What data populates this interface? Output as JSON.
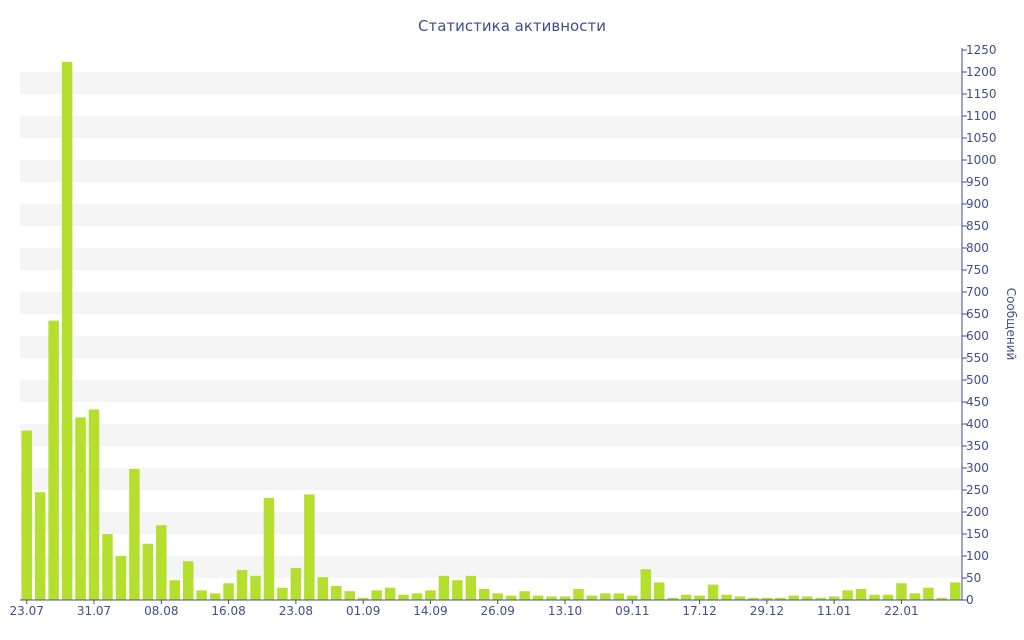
{
  "chart_data": {
    "type": "bar",
    "title": "Статистика активности",
    "ylabel": "Сообщений",
    "xlabel": "",
    "ylim": [
      0,
      1250
    ],
    "y_ticks": [
      0,
      50,
      100,
      150,
      200,
      250,
      300,
      350,
      400,
      450,
      500,
      550,
      600,
      650,
      700,
      750,
      800,
      850,
      900,
      950,
      1000,
      1050,
      1100,
      1150,
      1200,
      1250
    ],
    "x_tick_labels": [
      {
        "index": 0,
        "label": "23.07"
      },
      {
        "index": 5,
        "label": "31.07"
      },
      {
        "index": 10,
        "label": "08.08"
      },
      {
        "index": 15,
        "label": "16.08"
      },
      {
        "index": 20,
        "label": "23.08"
      },
      {
        "index": 25,
        "label": "01.09"
      },
      {
        "index": 30,
        "label": "14.09"
      },
      {
        "index": 35,
        "label": "26.09"
      },
      {
        "index": 40,
        "label": "13.10"
      },
      {
        "index": 45,
        "label": "09.11"
      },
      {
        "index": 50,
        "label": "17.12"
      },
      {
        "index": 55,
        "label": "29.12"
      },
      {
        "index": 60,
        "label": "11.01"
      },
      {
        "index": 65,
        "label": "22.01"
      }
    ],
    "values": [
      385,
      245,
      635,
      1223,
      415,
      433,
      150,
      100,
      298,
      128,
      170,
      45,
      88,
      22,
      15,
      38,
      68,
      55,
      232,
      28,
      73,
      240,
      52,
      32,
      20,
      5,
      22,
      28,
      12,
      15,
      22,
      55,
      45,
      55,
      25,
      15,
      10,
      20,
      10,
      8,
      8,
      25,
      10,
      15,
      15,
      10,
      70,
      40,
      5,
      12,
      10,
      35,
      12,
      8,
      5,
      5,
      5,
      10,
      8,
      5,
      8,
      22,
      25,
      12,
      12,
      38,
      15,
      28,
      5,
      40
    ],
    "grid": "horizontal bands",
    "legend": "none",
    "bar_color": "#b5df2e",
    "band_color": "#f5f5f5",
    "axis_color": "#3f4f8a"
  }
}
